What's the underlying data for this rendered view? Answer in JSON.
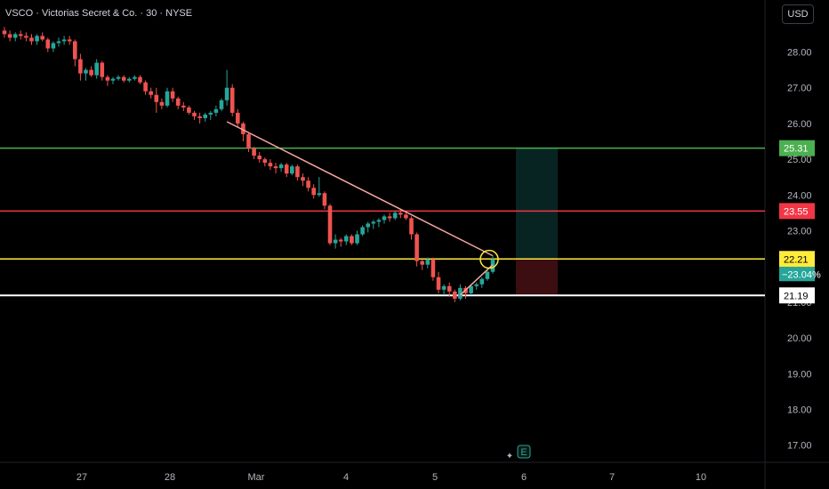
{
  "header": {
    "title": "VSCO · Victorias Secret & Co. · 30 · NYSE",
    "currency_button": "USD"
  },
  "colors": {
    "background": "#000000",
    "up": "#26a69a",
    "down": "#ef5350",
    "trendline": "#f4a79d",
    "resistance": "#4caf50",
    "entry": "#ffeb3b",
    "stop": "#f23645",
    "support": "#ffffff"
  },
  "chart_data": {
    "type": "candlestick",
    "symbol": "VSCO",
    "interval": "30",
    "exchange": "NYSE",
    "ylim": [
      16.6,
      29.1
    ],
    "y_ticks": [
      "17.00",
      "18.00",
      "19.00",
      "20.00",
      "21.00",
      "22.00",
      "23.00",
      "24.00",
      "25.00",
      "26.00",
      "27.00",
      "28.00"
    ],
    "x_ticks": [
      "27",
      "28",
      "Mar",
      "4",
      "5",
      "6",
      "7",
      "10"
    ],
    "price_tags": [
      {
        "label": "25.31",
        "value": 25.31,
        "kind": "resistance"
      },
      {
        "label": "23.55",
        "value": 23.55,
        "kind": "stop"
      },
      {
        "label": "22.21",
        "sublabel": "−23.04%",
        "value": 22.21,
        "kind": "entry"
      },
      {
        "label": "21.19",
        "value": 21.19,
        "kind": "support"
      }
    ],
    "candles": [
      [
        28.6,
        28.7,
        28.4,
        28.5
      ],
      [
        28.5,
        28.6,
        28.3,
        28.4
      ],
      [
        28.4,
        28.55,
        28.3,
        28.5
      ],
      [
        28.5,
        28.6,
        28.35,
        28.45
      ],
      [
        28.45,
        28.55,
        28.3,
        28.4
      ],
      [
        28.4,
        28.5,
        28.2,
        28.3
      ],
      [
        28.3,
        28.5,
        28.2,
        28.45
      ],
      [
        28.45,
        28.55,
        28.3,
        28.35
      ],
      [
        28.35,
        28.4,
        28.0,
        28.1
      ],
      [
        28.1,
        28.3,
        28.0,
        28.25
      ],
      [
        28.25,
        28.4,
        28.15,
        28.3
      ],
      [
        28.3,
        28.45,
        28.2,
        28.35
      ],
      [
        28.35,
        28.45,
        28.2,
        28.3
      ],
      [
        28.3,
        28.35,
        27.6,
        27.8
      ],
      [
        27.8,
        27.95,
        27.2,
        27.4
      ],
      [
        27.4,
        27.55,
        27.2,
        27.5
      ],
      [
        27.5,
        27.6,
        27.3,
        27.35
      ],
      [
        27.35,
        27.8,
        27.25,
        27.7
      ],
      [
        27.7,
        27.75,
        27.2,
        27.3
      ],
      [
        27.3,
        27.35,
        27.05,
        27.2
      ],
      [
        27.2,
        27.3,
        27.1,
        27.25
      ],
      [
        27.25,
        27.35,
        27.2,
        27.3
      ],
      [
        27.3,
        27.35,
        27.15,
        27.2
      ],
      [
        27.2,
        27.3,
        27.15,
        27.25
      ],
      [
        27.25,
        27.35,
        27.2,
        27.3
      ],
      [
        27.3,
        27.35,
        27.1,
        27.15
      ],
      [
        27.15,
        27.2,
        26.8,
        26.9
      ],
      [
        26.9,
        27.0,
        26.7,
        26.8
      ],
      [
        26.8,
        27.0,
        26.3,
        26.6
      ],
      [
        26.6,
        26.7,
        26.4,
        26.5
      ],
      [
        26.5,
        27.0,
        26.45,
        26.9
      ],
      [
        26.9,
        27.0,
        26.6,
        26.7
      ],
      [
        26.7,
        26.75,
        26.4,
        26.5
      ],
      [
        26.5,
        26.6,
        26.35,
        26.45
      ],
      [
        26.45,
        26.5,
        26.25,
        26.3
      ],
      [
        26.3,
        26.35,
        26.1,
        26.2
      ],
      [
        26.2,
        26.3,
        26.0,
        26.15
      ],
      [
        26.15,
        26.3,
        26.05,
        26.25
      ],
      [
        26.25,
        26.35,
        26.1,
        26.3
      ],
      [
        26.3,
        26.5,
        26.2,
        26.4
      ],
      [
        26.4,
        26.7,
        26.35,
        26.65
      ],
      [
        26.65,
        27.5,
        26.5,
        27.0
      ],
      [
        27.0,
        27.1,
        26.2,
        26.3
      ],
      [
        26.3,
        26.4,
        25.9,
        26.0
      ],
      [
        26.0,
        26.05,
        25.5,
        25.7
      ],
      [
        25.7,
        25.75,
        25.2,
        25.3
      ],
      [
        25.3,
        25.35,
        25.0,
        25.1
      ],
      [
        25.1,
        25.2,
        24.9,
        25.0
      ],
      [
        25.0,
        25.05,
        24.8,
        24.9
      ],
      [
        24.9,
        25.0,
        24.7,
        24.8
      ],
      [
        24.8,
        24.9,
        24.6,
        24.75
      ],
      [
        24.75,
        24.9,
        24.65,
        24.85
      ],
      [
        24.85,
        24.9,
        24.5,
        24.6
      ],
      [
        24.6,
        24.85,
        24.55,
        24.8
      ],
      [
        24.8,
        24.85,
        24.4,
        24.5
      ],
      [
        24.5,
        24.6,
        24.25,
        24.4
      ],
      [
        24.4,
        24.5,
        24.1,
        24.2
      ],
      [
        24.2,
        24.3,
        23.9,
        24.0
      ],
      [
        24.0,
        24.5,
        23.95,
        24.05
      ],
      [
        24.05,
        24.1,
        23.6,
        23.7
      ],
      [
        23.7,
        23.75,
        22.6,
        22.65
      ],
      [
        22.65,
        22.9,
        22.5,
        22.75
      ],
      [
        22.75,
        22.8,
        22.55,
        22.7
      ],
      [
        22.7,
        22.9,
        22.6,
        22.85
      ],
      [
        22.85,
        22.9,
        22.6,
        22.65
      ],
      [
        22.65,
        23.0,
        22.6,
        22.9
      ],
      [
        22.9,
        23.15,
        22.85,
        23.1
      ],
      [
        23.1,
        23.25,
        22.95,
        23.2
      ],
      [
        23.2,
        23.3,
        23.05,
        23.25
      ],
      [
        23.25,
        23.35,
        23.1,
        23.3
      ],
      [
        23.3,
        23.45,
        23.2,
        23.4
      ],
      [
        23.4,
        23.5,
        23.25,
        23.35
      ],
      [
        23.35,
        23.55,
        23.3,
        23.5
      ],
      [
        23.5,
        23.6,
        23.35,
        23.45
      ],
      [
        23.45,
        23.55,
        23.3,
        23.35
      ],
      [
        23.35,
        23.4,
        22.75,
        22.9
      ],
      [
        22.9,
        22.95,
        22.0,
        22.15
      ],
      [
        22.15,
        22.2,
        21.9,
        22.05
      ],
      [
        22.05,
        22.25,
        21.95,
        22.2
      ],
      [
        22.2,
        22.25,
        21.6,
        21.7
      ],
      [
        21.7,
        21.85,
        21.25,
        21.35
      ],
      [
        21.35,
        21.5,
        21.2,
        21.45
      ],
      [
        21.45,
        21.55,
        21.15,
        21.3
      ],
      [
        21.3,
        21.35,
        21.0,
        21.1
      ],
      [
        21.1,
        21.5,
        21.05,
        21.4
      ],
      [
        21.4,
        21.45,
        21.1,
        21.25
      ],
      [
        21.25,
        21.5,
        21.2,
        21.45
      ],
      [
        21.45,
        21.55,
        21.35,
        21.5
      ],
      [
        21.5,
        21.7,
        21.4,
        21.65
      ],
      [
        21.65,
        21.9,
        21.6,
        21.85
      ],
      [
        21.85,
        22.3,
        21.8,
        22.2
      ]
    ],
    "trendlines": [
      {
        "name": "descending-trendline",
        "from": {
          "bar": 41,
          "price": 26.05
        },
        "to": {
          "bar": 90,
          "price": 22.3
        }
      },
      {
        "name": "ascending-trendline",
        "from": {
          "bar": 84,
          "price": 21.2
        },
        "to": {
          "bar": 90,
          "price": 22.05
        }
      }
    ],
    "horizontal_levels": [
      {
        "name": "resistance-line",
        "value": 25.31
      },
      {
        "name": "stop-line",
        "value": 23.55
      },
      {
        "name": "entry-line",
        "value": 22.21
      },
      {
        "name": "support-line",
        "value": 21.19
      }
    ],
    "position": {
      "entry": 22.21,
      "target": 25.31,
      "stop": 21.19,
      "start_bar": 89,
      "end_bar": 96
    },
    "marker_circle": {
      "bar": 90,
      "price": 22.2
    },
    "event_marker": {
      "label": "E",
      "bar": 92
    }
  }
}
